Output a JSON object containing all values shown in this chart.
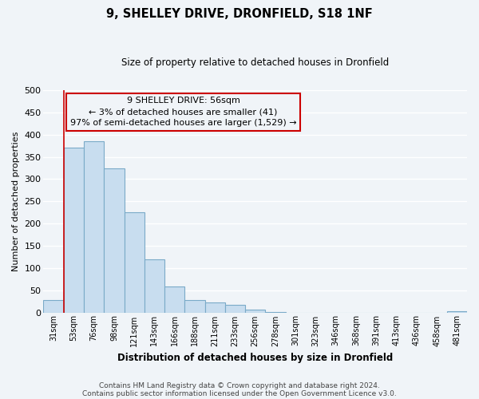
{
  "title": "9, SHELLEY DRIVE, DRONFIELD, S18 1NF",
  "subtitle": "Size of property relative to detached houses in Dronfield",
  "xlabel": "Distribution of detached houses by size in Dronfield",
  "ylabel": "Number of detached properties",
  "bar_color": "#c8ddef",
  "bar_edge_color": "#7aaac8",
  "categories": [
    "31sqm",
    "53sqm",
    "76sqm",
    "98sqm",
    "121sqm",
    "143sqm",
    "166sqm",
    "188sqm",
    "211sqm",
    "233sqm",
    "256sqm",
    "278sqm",
    "301sqm",
    "323sqm",
    "346sqm",
    "368sqm",
    "391sqm",
    "413sqm",
    "436sqm",
    "458sqm",
    "481sqm"
  ],
  "values": [
    28,
    370,
    385,
    325,
    225,
    120,
    58,
    28,
    23,
    17,
    6,
    1,
    0,
    0,
    0,
    0,
    0,
    0,
    0,
    0,
    2
  ],
  "ylim": [
    0,
    500
  ],
  "yticks": [
    0,
    50,
    100,
    150,
    200,
    250,
    300,
    350,
    400,
    450,
    500
  ],
  "annotation_box_text": "9 SHELLEY DRIVE: 56sqm\n← 3% of detached houses are smaller (41)\n97% of semi-detached houses are larger (1,529) →",
  "footer_line1": "Contains HM Land Registry data © Crown copyright and database right 2024.",
  "footer_line2": "Contains public sector information licensed under the Open Government Licence v3.0.",
  "bg_color": "#f0f4f8",
  "grid_color": "#ffffff",
  "annotation_box_edge_color": "#cc0000",
  "annotation_line_color": "#cc0000",
  "red_line_index": 1
}
